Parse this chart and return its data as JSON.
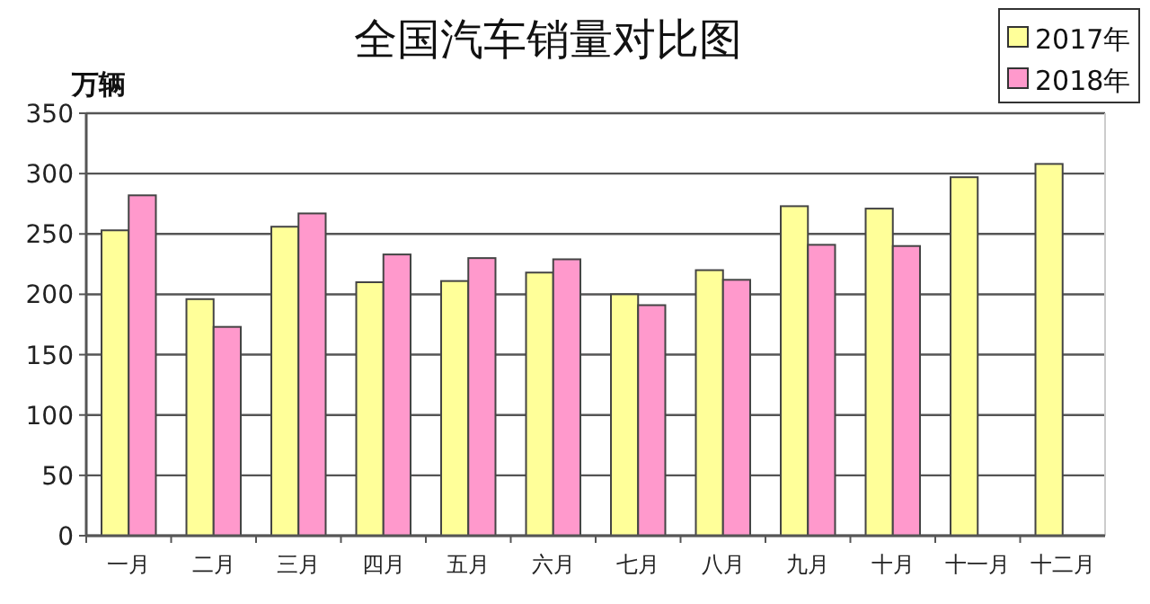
{
  "chart_data": {
    "type": "bar",
    "title": "全国汽车销量对比图",
    "ylabel": "万辆",
    "categories": [
      "一月",
      "二月",
      "三月",
      "四月",
      "五月",
      "六月",
      "七月",
      "八月",
      "九月",
      "十月",
      "十一月",
      "十二月"
    ],
    "series": [
      {
        "name": "2017年",
        "color": "#ffff99",
        "values": [
          253,
          196,
          256,
          210,
          211,
          218,
          200,
          220,
          273,
          271,
          297,
          308
        ]
      },
      {
        "name": "2018年",
        "color": "#ff99cc",
        "values": [
          282,
          173,
          267,
          233,
          230,
          229,
          191,
          212,
          241,
          240,
          null,
          null
        ]
      }
    ],
    "ylim": [
      0,
      350
    ],
    "yticks": [
      0,
      50,
      100,
      150,
      200,
      250,
      300,
      350
    ],
    "grid": "y",
    "legend": "top right"
  }
}
